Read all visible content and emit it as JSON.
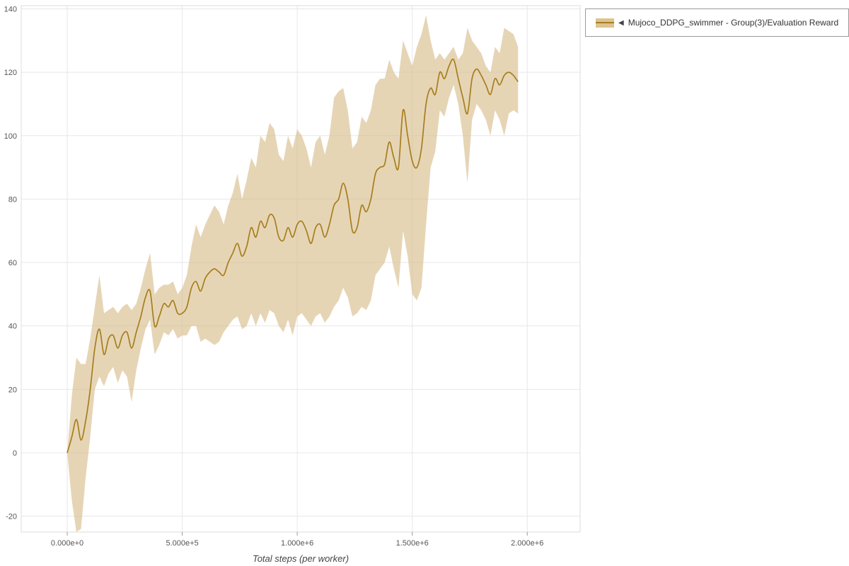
{
  "legend": {
    "toggle_icon": "◀",
    "label": "Mujoco_DDPG_swimmer - Group(3)/Evaluation Reward"
  },
  "colors": {
    "line": "#a67e1c",
    "band": "#d7bc88",
    "band_opacity": 0.62,
    "grid": "#e7e7e7",
    "plot_border": "#dddddd",
    "tick": "#999999",
    "tick_text": "#555555"
  },
  "chart_data": {
    "type": "line",
    "title": "",
    "xlabel": "Total steps (per worker)",
    "ylabel": "",
    "legend_position": "top-right",
    "grid": true,
    "xlim": [
      -200000,
      2230000
    ],
    "ylim": [
      -25,
      141
    ],
    "x_tick_values": [
      0,
      500000,
      1000000,
      1500000,
      2000000
    ],
    "x_tick_labels": [
      "0.000e+0",
      "5.000e+5",
      "1.000e+6",
      "1.500e+6",
      "2.000e+6"
    ],
    "y_tick_values": [
      -20,
      0,
      20,
      40,
      60,
      80,
      100,
      120,
      140
    ],
    "y_tick_labels": [
      "-20",
      "0",
      "20",
      "40",
      "60",
      "80",
      "100",
      "120",
      "140"
    ],
    "series": [
      {
        "name": "Mujoco_DDPG_swimmer - Group(3)/Evaluation Reward",
        "x": [
          0,
          20000,
          40000,
          60000,
          80000,
          100000,
          120000,
          140000,
          160000,
          180000,
          200000,
          220000,
          240000,
          260000,
          280000,
          300000,
          320000,
          340000,
          360000,
          380000,
          400000,
          420000,
          440000,
          460000,
          480000,
          500000,
          520000,
          540000,
          560000,
          580000,
          600000,
          620000,
          640000,
          660000,
          680000,
          700000,
          720000,
          740000,
          760000,
          780000,
          800000,
          820000,
          840000,
          860000,
          880000,
          900000,
          920000,
          940000,
          960000,
          980000,
          1000000,
          1020000,
          1040000,
          1060000,
          1080000,
          1100000,
          1120000,
          1140000,
          1160000,
          1180000,
          1200000,
          1220000,
          1240000,
          1260000,
          1280000,
          1300000,
          1320000,
          1340000,
          1360000,
          1380000,
          1400000,
          1420000,
          1440000,
          1460000,
          1480000,
          1500000,
          1520000,
          1540000,
          1560000,
          1580000,
          1600000,
          1620000,
          1640000,
          1660000,
          1680000,
          1700000,
          1720000,
          1740000,
          1760000,
          1780000,
          1800000,
          1820000,
          1840000,
          1860000,
          1880000,
          1900000,
          1920000,
          1940000,
          1960000
        ],
        "mean": [
          0,
          5,
          10.5,
          4,
          10,
          20,
          33,
          39,
          31,
          36,
          37,
          33,
          37,
          38,
          33,
          38,
          43,
          49,
          51,
          40,
          43,
          47,
          46,
          48,
          44,
          44,
          46,
          52,
          54,
          51,
          55,
          57,
          58,
          57,
          56,
          60,
          63,
          66,
          62,
          65,
          71,
          68,
          73,
          71,
          75,
          74,
          68,
          67,
          71,
          68,
          72,
          73,
          70,
          66,
          71,
          72,
          68,
          72,
          78,
          80,
          85,
          80,
          70,
          71,
          78,
          76,
          80,
          88,
          90,
          91,
          98,
          93,
          90,
          108,
          100,
          92,
          90,
          96,
          110,
          115,
          113,
          120,
          118,
          122,
          124,
          118,
          112,
          107,
          118,
          121,
          119,
          116,
          113,
          118,
          116,
          119,
          120,
          119,
          117
        ],
        "lower": [
          0,
          -15,
          -25,
          -24,
          -8,
          5,
          20,
          24,
          21,
          25,
          27,
          22,
          26,
          24,
          16,
          26,
          33,
          39,
          42,
          31,
          34,
          38,
          37,
          39,
          36,
          37,
          37,
          40,
          40,
          35,
          36,
          35,
          34,
          35,
          38,
          40,
          42,
          43,
          39,
          40,
          44,
          40,
          44,
          41,
          45,
          44,
          40,
          38,
          42,
          37,
          43,
          44,
          42,
          40,
          43,
          44,
          41,
          43,
          46,
          48,
          52,
          49,
          43,
          44,
          46,
          45,
          48,
          56,
          58,
          60,
          65,
          58,
          52,
          70,
          62,
          50,
          48,
          52,
          72,
          90,
          95,
          108,
          106,
          112,
          116,
          110,
          100,
          85,
          105,
          110,
          108,
          105,
          100,
          108,
          105,
          100,
          107,
          108,
          107
        ],
        "upper": [
          0,
          18,
          30,
          28,
          28,
          36,
          46,
          56,
          44,
          45,
          46,
          44,
          46,
          47,
          45,
          47,
          52,
          58,
          63,
          50,
          52,
          53,
          53,
          54,
          50,
          52,
          56,
          65,
          72,
          68,
          72,
          75,
          78,
          76,
          72,
          78,
          82,
          88,
          80,
          86,
          93,
          90,
          100,
          98,
          104,
          102,
          94,
          92,
          100,
          96,
          102,
          100,
          96,
          90,
          98,
          100,
          94,
          100,
          112,
          114,
          115,
          108,
          96,
          98,
          106,
          104,
          108,
          116,
          118,
          118,
          124,
          120,
          118,
          130,
          126,
          122,
          128,
          132,
          138,
          130,
          124,
          126,
          124,
          126,
          128,
          124,
          126,
          134,
          130,
          128,
          126,
          122,
          120,
          128,
          126,
          134,
          133,
          132,
          128
        ]
      }
    ]
  }
}
